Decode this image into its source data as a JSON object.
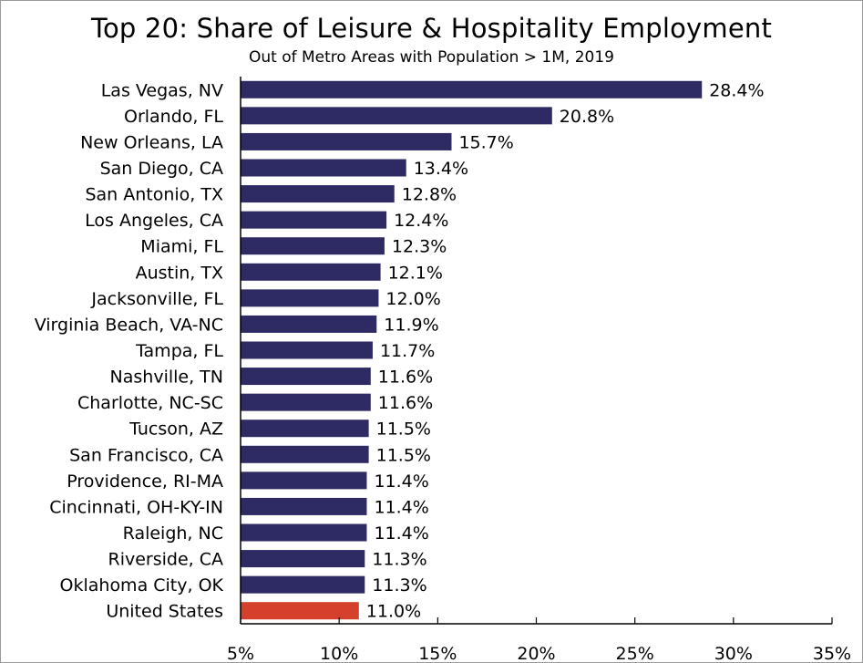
{
  "chart_data": {
    "type": "bar",
    "orientation": "horizontal",
    "title": "Top 20: Share of Leisure & Hospitality Employment",
    "subtitle": "Out of Metro Areas with Population > 1M, 2019",
    "xlabel": "",
    "ylabel": "",
    "xlim": [
      5,
      35
    ],
    "xticks": [
      5,
      10,
      15,
      20,
      25,
      30,
      35
    ],
    "xtick_suffix": "%",
    "grid": false,
    "categories": [
      "Las Vegas, NV",
      "Orlando, FL",
      "New Orleans, LA",
      "San Diego, CA",
      "San Antonio, TX",
      "Los Angeles, CA",
      "Miami, FL",
      "Austin, TX",
      "Jacksonville, FL",
      "Virginia Beach, VA-NC",
      "Tampa, FL",
      "Nashville, TN",
      "Charlotte, NC-SC",
      "Tucson, AZ",
      "San Francisco, CA",
      "Providence, RI-MA",
      "Cincinnati, OH-KY-IN",
      "Raleigh, NC",
      "Riverside, CA",
      "Oklahoma City, OK",
      "United States"
    ],
    "values": [
      28.4,
      20.8,
      15.7,
      13.4,
      12.8,
      12.4,
      12.3,
      12.1,
      12.0,
      11.9,
      11.7,
      11.6,
      11.6,
      11.5,
      11.5,
      11.4,
      11.4,
      11.4,
      11.3,
      11.3,
      11.0
    ],
    "data_labels": [
      "28.4%",
      "20.8%",
      "15.7%",
      "13.4%",
      "12.8%",
      "12.4%",
      "12.3%",
      "12.1%",
      "12.0%",
      "11.9%",
      "11.7%",
      "11.6%",
      "11.6%",
      "11.5%",
      "11.5%",
      "11.4%",
      "11.4%",
      "11.4%",
      "11.3%",
      "11.3%",
      "11.0%"
    ],
    "colors": {
      "metro": "#2e2a63",
      "national": "#d4402c",
      "axis": "#000000"
    },
    "highlight_category": "United States"
  }
}
